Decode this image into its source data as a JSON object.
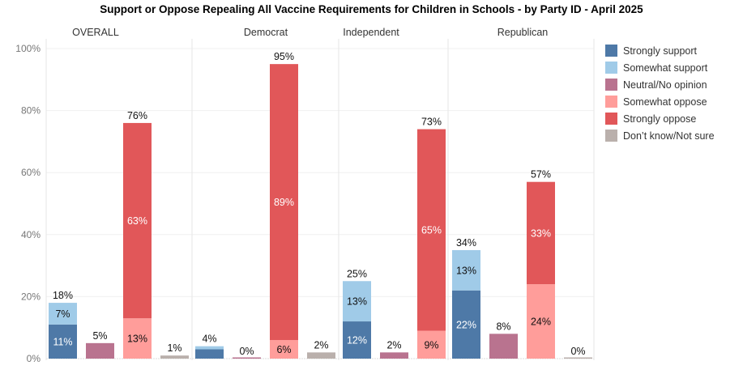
{
  "chart_data": {
    "type": "bar",
    "stacked": true,
    "title": "Support or Oppose Repealing All Vaccine Requirements for Children in Schools - by Party ID - April 2025",
    "xlabel": "",
    "ylabel": "",
    "ylim": [
      0,
      100
    ],
    "yticks": [
      "0%",
      "20%",
      "40%",
      "60%",
      "80%",
      "100%"
    ],
    "grid": true,
    "legend_position": "right",
    "panels": [
      "OVERALL",
      "Democrat",
      "Independent",
      "Republican"
    ],
    "groups": [
      "Support",
      "Neutral/No opinion",
      "Oppose",
      "Don't know/Not sure"
    ],
    "series": [
      {
        "name": "Strongly support",
        "color": "#4e79a7",
        "group": 0,
        "values": [
          11,
          3,
          12,
          22
        ],
        "labels": [
          "11%",
          "",
          "12%",
          "22%"
        ]
      },
      {
        "name": "Somewhat support",
        "color": "#a0cbe8",
        "group": 0,
        "values": [
          7,
          1,
          13,
          13
        ],
        "labels": [
          "7%",
          "",
          "13%",
          "13%"
        ]
      },
      {
        "name": "Neutral/No opinion",
        "color": "#b9738f",
        "group": 1,
        "values": [
          5,
          0,
          2,
          8
        ],
        "labels": [
          "",
          "",
          "",
          ""
        ]
      },
      {
        "name": "Somewhat oppose",
        "color": "#ff9d9a",
        "group": 2,
        "values": [
          13,
          6,
          9,
          24
        ],
        "labels": [
          "13%",
          "6%",
          "9%",
          "24%"
        ]
      },
      {
        "name": "Strongly oppose",
        "color": "#e15759",
        "group": 2,
        "values": [
          63,
          89,
          65,
          33
        ],
        "labels": [
          "63%",
          "89%",
          "65%",
          "33%"
        ]
      },
      {
        "name": "Don’t know/Not sure",
        "color": "#bab0ac",
        "group": 3,
        "values": [
          1,
          2,
          0,
          0
        ],
        "labels": [
          "",
          "",
          "",
          ""
        ]
      }
    ],
    "totals": {
      "Support": [
        "18%",
        "4%",
        "25%",
        "34%"
      ],
      "Neutral/No opinion": [
        "5%",
        "0%",
        "2%",
        "8%"
      ],
      "Oppose": [
        "76%",
        "95%",
        "73%",
        "57%"
      ],
      "Don't know/Not sure": [
        "1%",
        "2%",
        "",
        "0%"
      ]
    }
  }
}
